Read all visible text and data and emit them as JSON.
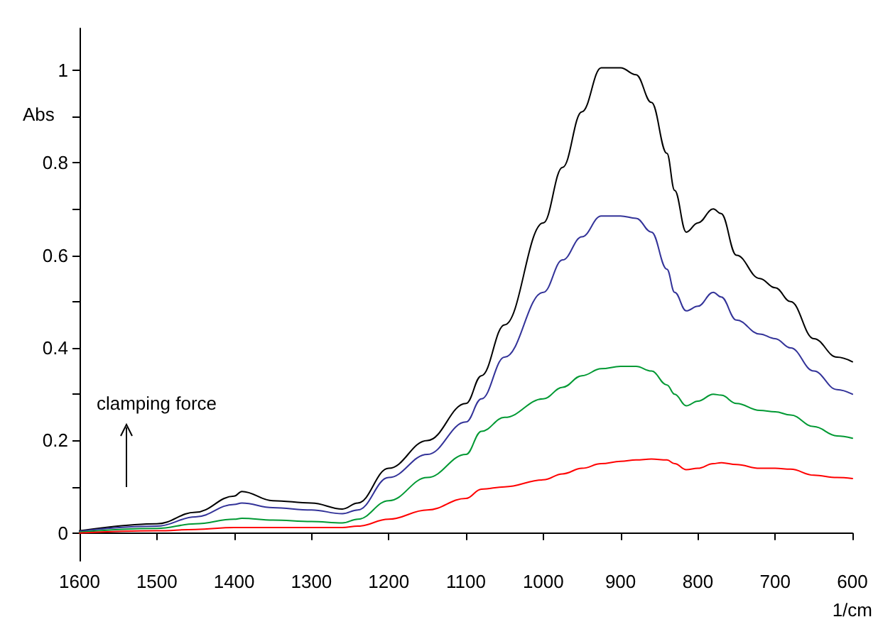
{
  "chart_data": {
    "type": "line",
    "xlabel": "1/cm",
    "ylabel": "Abs",
    "annotations": [
      "clamping force"
    ],
    "x": [
      1600,
      1500,
      1450,
      1400,
      1390,
      1350,
      1300,
      1260,
      1240,
      1200,
      1150,
      1100,
      1080,
      1050,
      1000,
      975,
      950,
      925,
      900,
      880,
      860,
      840,
      830,
      815,
      800,
      780,
      770,
      750,
      720,
      700,
      680,
      650,
      620,
      600
    ],
    "series": [
      {
        "color": "#000000",
        "values": [
          0.005,
          0.02,
          0.045,
          0.08,
          0.09,
          0.07,
          0.065,
          0.052,
          0.065,
          0.14,
          0.2,
          0.28,
          0.34,
          0.45,
          0.67,
          0.79,
          0.91,
          1.005,
          1.005,
          0.99,
          0.93,
          0.82,
          0.74,
          0.65,
          0.67,
          0.7,
          0.69,
          0.6,
          0.55,
          0.53,
          0.5,
          0.42,
          0.38,
          0.37
        ]
      },
      {
        "color": "#333399",
        "values": [
          0.004,
          0.015,
          0.035,
          0.062,
          0.065,
          0.055,
          0.05,
          0.042,
          0.05,
          0.12,
          0.17,
          0.24,
          0.29,
          0.38,
          0.52,
          0.59,
          0.64,
          0.685,
          0.685,
          0.68,
          0.65,
          0.57,
          0.52,
          0.48,
          0.49,
          0.52,
          0.51,
          0.46,
          0.43,
          0.42,
          0.4,
          0.35,
          0.31,
          0.3
        ]
      },
      {
        "color": "#009933",
        "values": [
          0.002,
          0.01,
          0.02,
          0.03,
          0.032,
          0.028,
          0.025,
          0.022,
          0.03,
          0.07,
          0.12,
          0.17,
          0.22,
          0.25,
          0.29,
          0.315,
          0.34,
          0.355,
          0.36,
          0.36,
          0.35,
          0.32,
          0.3,
          0.275,
          0.285,
          0.3,
          0.298,
          0.28,
          0.265,
          0.262,
          0.255,
          0.23,
          0.21,
          0.205
        ]
      },
      {
        "color": "#ff0000",
        "values": [
          0,
          0.005,
          0.008,
          0.012,
          0.012,
          0.012,
          0.012,
          0.012,
          0.015,
          0.03,
          0.05,
          0.075,
          0.095,
          0.1,
          0.115,
          0.128,
          0.14,
          0.15,
          0.155,
          0.158,
          0.16,
          0.158,
          0.15,
          0.137,
          0.14,
          0.15,
          0.152,
          0.148,
          0.14,
          0.14,
          0.138,
          0.125,
          0.12,
          0.118
        ]
      }
    ],
    "xlim": [
      1600,
      600
    ],
    "xticks": [
      1600,
      1500,
      1400,
      1300,
      1200,
      1100,
      1000,
      900,
      800,
      700,
      600
    ],
    "ylim": [
      -0.06,
      1.09
    ],
    "yticks": [
      0,
      {
        "value": 0.1,
        "label": null
      },
      0.2,
      {
        "value": 0.3,
        "label": null
      },
      0.4,
      {
        "value": 0.5,
        "label": null
      },
      0.6,
      {
        "value": 0.7,
        "label": null
      },
      0.8,
      {
        "value": 0.9,
        "label": null
      },
      1
    ],
    "grid": false,
    "marker": "none",
    "line_style": "solid"
  }
}
